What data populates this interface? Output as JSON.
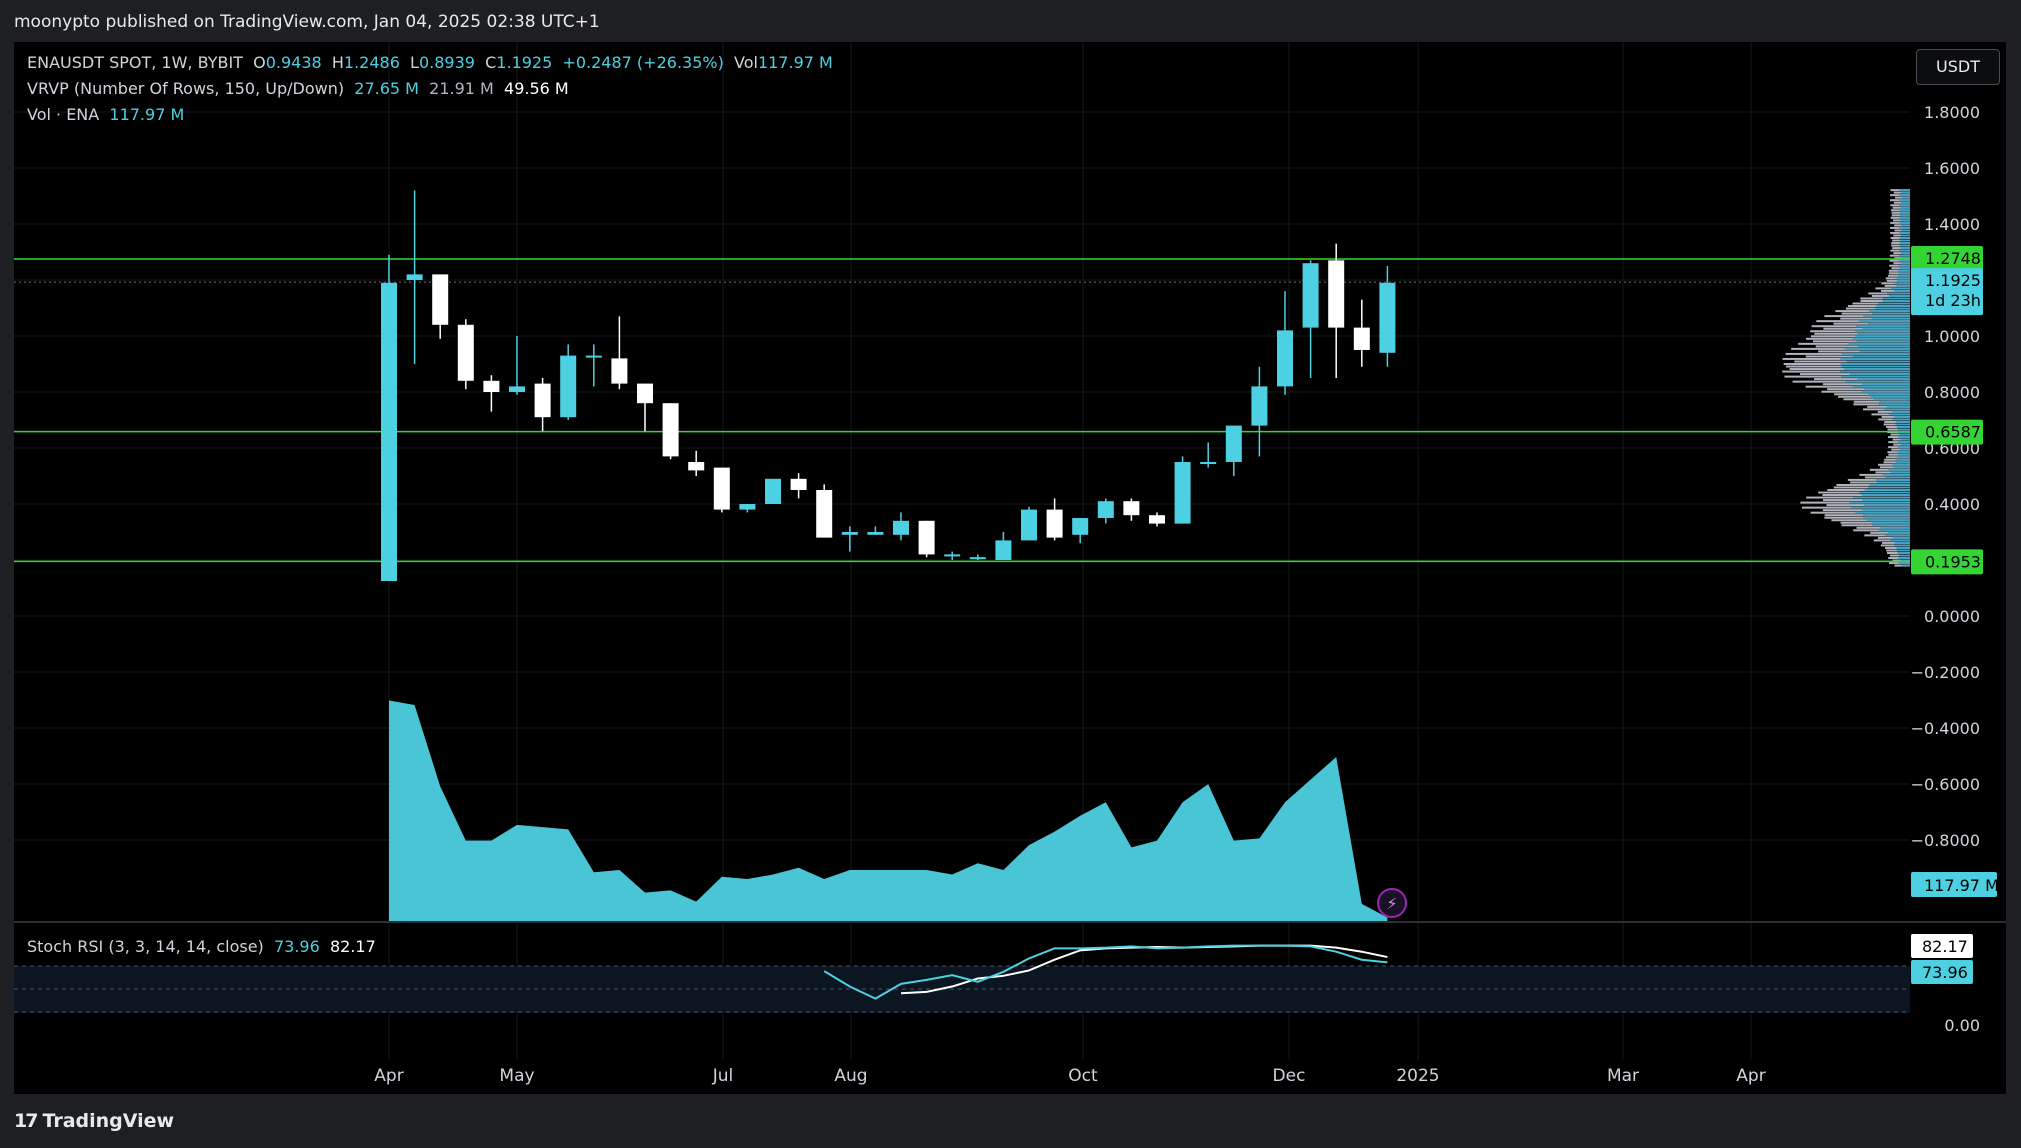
{
  "header": {
    "published": "moonypto published on TradingView.com, Jan 04, 2025 02:38 UTC+1"
  },
  "footer": {
    "brand": "TradingView",
    "brand_mark": "17"
  },
  "currency_button": "USDT",
  "legend": {
    "symbol": "ENAUSDT SPOT, 1W, BYBIT",
    "o_label": "O",
    "o": "0.9438",
    "h_label": "H",
    "h": "1.2486",
    "l_label": "L",
    "l": "0.8939",
    "c_label": "C",
    "c": "1.1925",
    "change": "+0.2487 (+26.35%)",
    "vol_label": "Vol",
    "vol": "117.97 M",
    "vrvp": "VRVP (Number Of Rows, 150, Up/Down)",
    "vrvp_up": "27.65 M",
    "vrvp_down": "21.91 M",
    "vrvp_total": "49.56 M",
    "volume_label": "Vol · ENA",
    "volume_value": "117.97 M",
    "stoch_label": "Stoch RSI (3, 3, 14, 14, close)",
    "stoch_k": "73.96",
    "stoch_d": "82.17"
  },
  "colors": {
    "up": "#4dd0e1",
    "down": "#ffffff",
    "level": "#34d934",
    "background": "#000000"
  },
  "chart_data": {
    "type": "candlestick",
    "title": "ENAUSDT SPOT, 1W, BYBIT",
    "ylim": [
      -1.0,
      1.9
    ],
    "y_ticks": [
      "1.8000",
      "1.6000",
      "1.4000",
      "1.0000",
      "0.8000",
      "0.6000",
      "0.4000",
      "0.0000",
      "−0.2000",
      "−0.4000",
      "−0.6000",
      "−0.8000"
    ],
    "x_ticks": [
      "Apr",
      "May",
      "Jul",
      "Aug",
      "Oct",
      "Dec",
      "2025",
      "Mar",
      "Apr"
    ],
    "horizontal_levels": [
      {
        "label": "1.2748",
        "value": 1.2748
      },
      {
        "label": "0.6587",
        "value": 0.6587
      },
      {
        "label": "0.1953",
        "value": 0.1953
      }
    ],
    "last_price": {
      "label": "1.1925",
      "value": 1.1925,
      "countdown": "1d 23h"
    },
    "volume_badge": "117.97 M",
    "candles": [
      {
        "o": 0.125,
        "h": 1.29,
        "l": 0.125,
        "c": 1.19
      },
      {
        "o": 1.2,
        "h": 1.52,
        "l": 0.9,
        "c": 1.22
      },
      {
        "o": 1.22,
        "h": 1.22,
        "l": 0.99,
        "c": 1.04
      },
      {
        "o": 1.04,
        "h": 1.06,
        "l": 0.81,
        "c": 0.84
      },
      {
        "o": 0.84,
        "h": 0.86,
        "l": 0.73,
        "c": 0.8
      },
      {
        "o": 0.8,
        "h": 1.0,
        "l": 0.79,
        "c": 0.82
      },
      {
        "o": 0.83,
        "h": 0.85,
        "l": 0.66,
        "c": 0.71
      },
      {
        "o": 0.71,
        "h": 0.97,
        "l": 0.7,
        "c": 0.93
      },
      {
        "o": 0.93,
        "h": 0.97,
        "l": 0.82,
        "c": 0.93
      },
      {
        "o": 0.92,
        "h": 1.07,
        "l": 0.81,
        "c": 0.83
      },
      {
        "o": 0.83,
        "h": 0.83,
        "l": 0.66,
        "c": 0.76
      },
      {
        "o": 0.76,
        "h": 0.76,
        "l": 0.56,
        "c": 0.57
      },
      {
        "o": 0.55,
        "h": 0.59,
        "l": 0.5,
        "c": 0.52
      },
      {
        "o": 0.53,
        "h": 0.53,
        "l": 0.37,
        "c": 0.38
      },
      {
        "o": 0.38,
        "h": 0.4,
        "l": 0.37,
        "c": 0.4
      },
      {
        "o": 0.4,
        "h": 0.49,
        "l": 0.4,
        "c": 0.49
      },
      {
        "o": 0.49,
        "h": 0.51,
        "l": 0.42,
        "c": 0.45
      },
      {
        "o": 0.45,
        "h": 0.47,
        "l": 0.28,
        "c": 0.28
      },
      {
        "o": 0.29,
        "h": 0.32,
        "l": 0.23,
        "c": 0.3
      },
      {
        "o": 0.29,
        "h": 0.32,
        "l": 0.29,
        "c": 0.3
      },
      {
        "o": 0.29,
        "h": 0.37,
        "l": 0.27,
        "c": 0.34
      },
      {
        "o": 0.34,
        "h": 0.34,
        "l": 0.21,
        "c": 0.22
      },
      {
        "o": 0.22,
        "h": 0.23,
        "l": 0.2,
        "c": 0.22
      },
      {
        "o": 0.21,
        "h": 0.22,
        "l": 0.2,
        "c": 0.21
      },
      {
        "o": 0.2,
        "h": 0.3,
        "l": 0.2,
        "c": 0.27
      },
      {
        "o": 0.27,
        "h": 0.39,
        "l": 0.27,
        "c": 0.38
      },
      {
        "o": 0.38,
        "h": 0.42,
        "l": 0.27,
        "c": 0.28
      },
      {
        "o": 0.29,
        "h": 0.35,
        "l": 0.26,
        "c": 0.35
      },
      {
        "o": 0.35,
        "h": 0.42,
        "l": 0.33,
        "c": 0.41
      },
      {
        "o": 0.41,
        "h": 0.42,
        "l": 0.34,
        "c": 0.36
      },
      {
        "o": 0.36,
        "h": 0.37,
        "l": 0.32,
        "c": 0.33
      },
      {
        "o": 0.33,
        "h": 0.57,
        "l": 0.33,
        "c": 0.55
      },
      {
        "o": 0.55,
        "h": 0.62,
        "l": 0.53,
        "c": 0.55
      },
      {
        "o": 0.55,
        "h": 0.68,
        "l": 0.5,
        "c": 0.68
      },
      {
        "o": 0.68,
        "h": 0.89,
        "l": 0.57,
        "c": 0.82
      },
      {
        "o": 0.82,
        "h": 1.16,
        "l": 0.79,
        "c": 1.02
      },
      {
        "o": 1.03,
        "h": 1.27,
        "l": 0.85,
        "c": 1.26
      },
      {
        "o": 1.27,
        "h": 1.33,
        "l": 0.85,
        "c": 1.03
      },
      {
        "o": 1.03,
        "h": 1.13,
        "l": 0.89,
        "c": 0.95
      },
      {
        "o": 0.94,
        "h": 1.25,
        "l": 0.89,
        "c": 1.19
      }
    ],
    "volume_area": [
      0.98,
      0.96,
      0.6,
      0.36,
      0.36,
      0.43,
      0.42,
      0.41,
      0.22,
      0.23,
      0.13,
      0.14,
      0.09,
      0.2,
      0.19,
      0.21,
      0.24,
      0.19,
      0.23,
      0.23,
      0.23,
      0.23,
      0.21,
      0.26,
      0.23,
      0.34,
      0.4,
      0.47,
      0.53,
      0.33,
      0.36,
      0.53,
      0.61,
      0.36,
      0.37,
      0.53,
      0.63,
      0.73,
      0.08,
      0.02
    ],
    "stoch_rsi": {
      "k": [
        null,
        null,
        null,
        null,
        null,
        null,
        null,
        null,
        null,
        null,
        null,
        null,
        null,
        null,
        null,
        null,
        null,
        61,
        38,
        20,
        42,
        48,
        55,
        45,
        60,
        80,
        95,
        95,
        96,
        98,
        95,
        96,
        98,
        99,
        99,
        99,
        98,
        90,
        78,
        74
      ],
      "d": [
        null,
        null,
        null,
        null,
        null,
        null,
        null,
        null,
        null,
        null,
        null,
        null,
        null,
        null,
        null,
        null,
        null,
        null,
        null,
        null,
        28,
        30,
        38,
        50,
        54,
        62,
        78,
        92,
        95,
        96,
        97,
        96,
        97,
        98,
        99,
        99,
        99,
        96,
        90,
        82
      ],
      "ylim": [
        0,
        100
      ],
      "tick": "0.00",
      "bands": [
        80,
        20
      ]
    }
  }
}
